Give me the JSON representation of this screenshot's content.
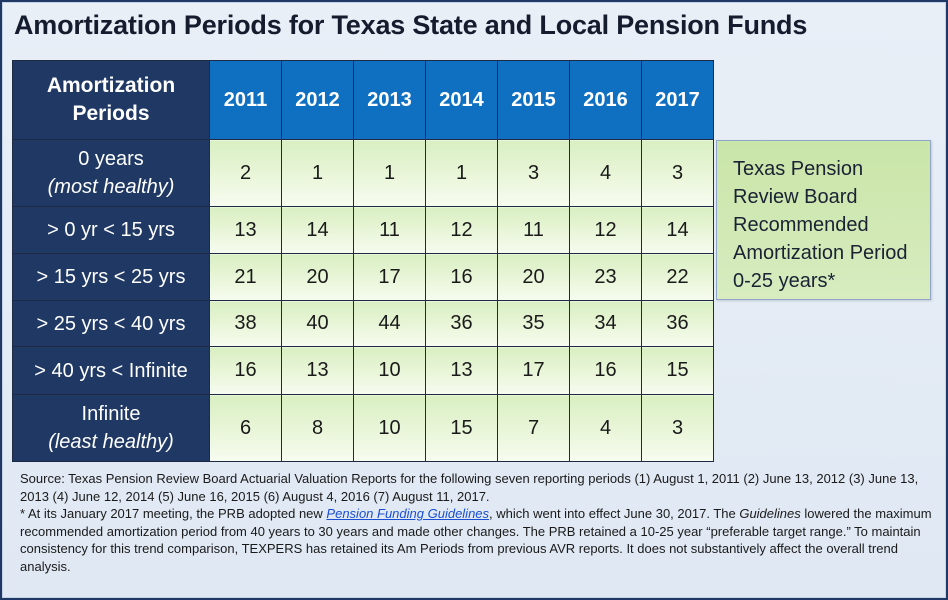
{
  "title": "Amortization Periods for Texas State and Local Pension Funds",
  "table": {
    "corner_line1": "Amortization",
    "corner_line2": "Periods",
    "years": [
      "2011",
      "2012",
      "2013",
      "2014",
      "2015",
      "2016",
      "2017"
    ],
    "rows": [
      {
        "label": "0 years",
        "sublabel": "(most healthy)",
        "values": [
          "2",
          "1",
          "1",
          "1",
          "3",
          "4",
          "3"
        ]
      },
      {
        "label": "> 0 yr < 15 yrs",
        "values": [
          "13",
          "14",
          "11",
          "12",
          "11",
          "12",
          "14"
        ]
      },
      {
        "label": "> 15 yrs < 25 yrs",
        "values": [
          "21",
          "20",
          "17",
          "16",
          "20",
          "23",
          "22"
        ]
      },
      {
        "label": "> 25 yrs < 40 yrs",
        "values": [
          "38",
          "40",
          "44",
          "36",
          "35",
          "34",
          "36"
        ]
      },
      {
        "label": "> 40 yrs < Infinite",
        "values": [
          "16",
          "13",
          "10",
          "13",
          "17",
          "16",
          "15"
        ]
      },
      {
        "label": "Infinite",
        "sublabel": "(least healthy)",
        "values": [
          "6",
          "8",
          "10",
          "15",
          "7",
          "4",
          "3"
        ]
      }
    ]
  },
  "callout": {
    "lines": [
      "Texas Pension",
      "Review Board",
      "Recommended",
      "Amortization Period",
      "0-25 years*"
    ]
  },
  "notes": {
    "source": "Source: Texas Pension Review Board Actuarial Valuation Reports for the following seven reporting periods (1) August 1, 2011 (2) June 13, 2012 (3) June 13, 2013 (4) June 12, 2014 (5) June 16, 2015 (6) August 4, 2016 (7) August 11, 2017.",
    "footnote_start": "* At its January 2017 meeting, the PRB adopted new ",
    "footnote_link": "Pension Funding Guidelines",
    "footnote_mid": ", which went into effect June 30, 2017. The ",
    "footnote_italic": "Guidelines",
    "footnote_end": " lowered the maximum recommended amortization period from 40 years to 30 years and made other changes. The PRB retained a 10-25 year “preferable target range.” To maintain consistency for this trend comparison, TEXPERS has retained its Am Periods from previous AVR reports. It does not substantively affect the overall trend analysis."
  },
  "colors": {
    "header_navy": "#1f3864",
    "header_blue": "#0f6fc0",
    "cell_green": "#e4f3d2",
    "callout_green": "#d0e8b4",
    "link_blue": "#1a4fd1"
  }
}
